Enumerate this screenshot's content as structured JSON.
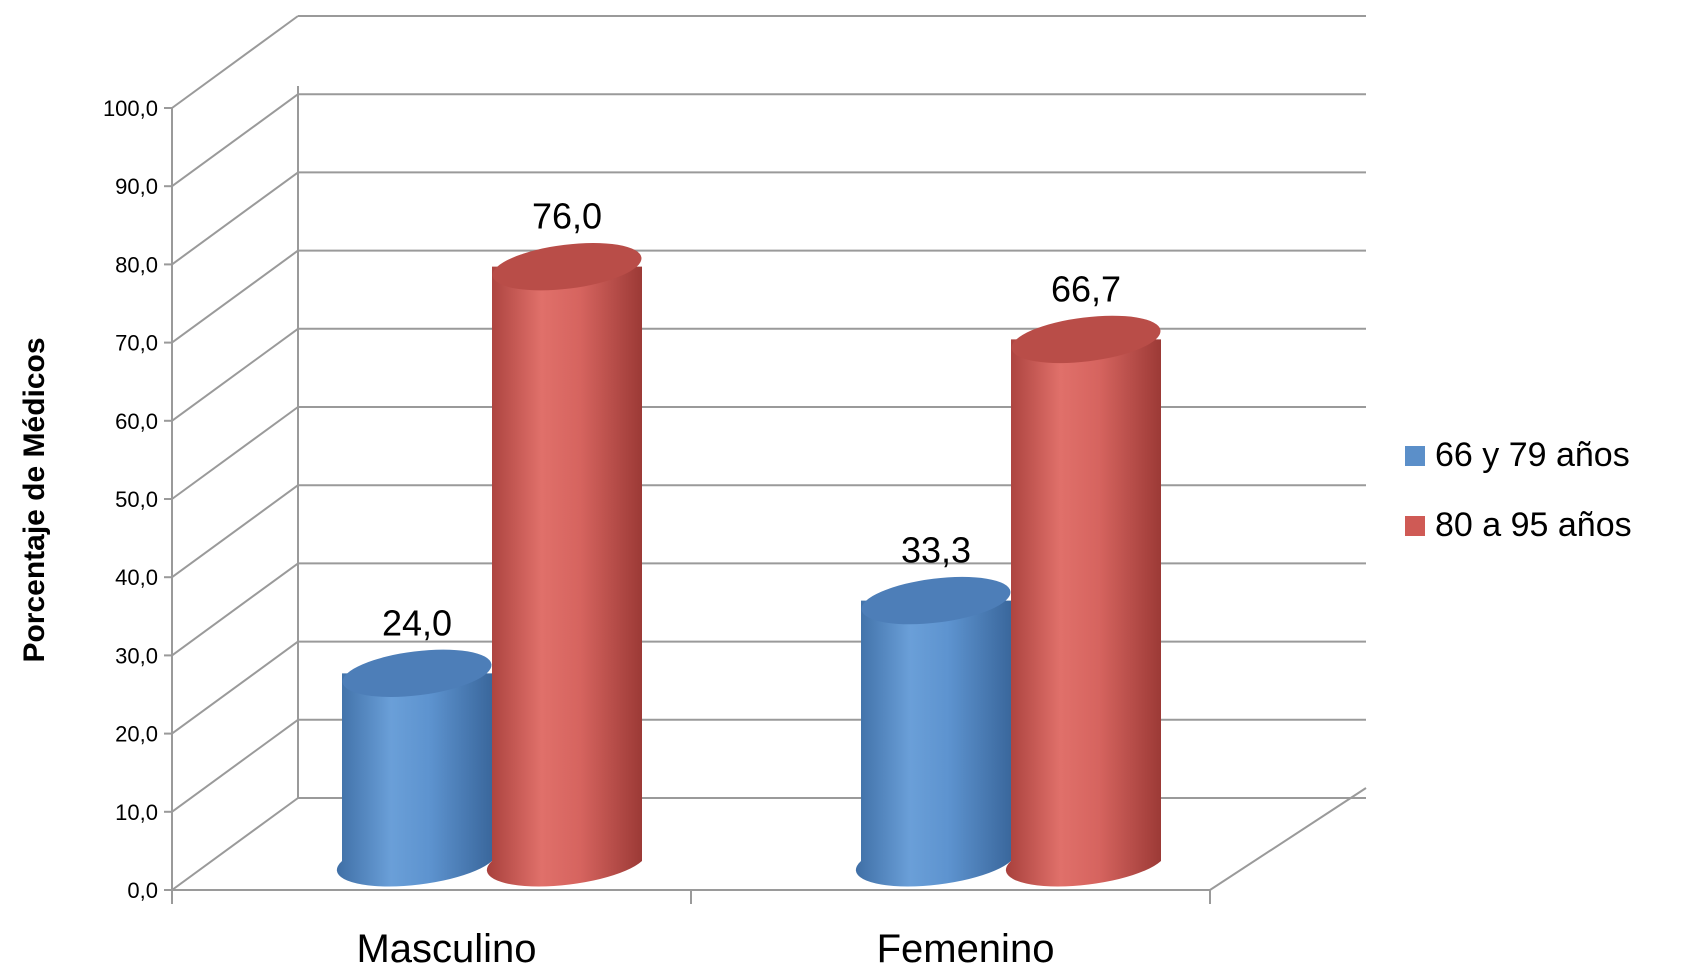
{
  "chart_data": {
    "type": "bar",
    "style": "3d-cylinder",
    "title": "",
    "xlabel": "",
    "ylabel": "Porcentaje de Médicos",
    "ylim": [
      0,
      100
    ],
    "ytick_labels": [
      "0,0",
      "10,0",
      "20,0",
      "30,0",
      "40,0",
      "50,0",
      "60,0",
      "70,0",
      "80,0",
      "90,0",
      "100,0"
    ],
    "categories": [
      "Masculino",
      "Femenino"
    ],
    "series": [
      {
        "name": "66 y 79 años",
        "color": "#5b8fc9",
        "values": [
          24.0,
          33.3
        ],
        "labels": [
          "24,0",
          "33,3"
        ]
      },
      {
        "name": "80 a 95 años",
        "color": "#cf5a55",
        "values": [
          76.0,
          66.7
        ],
        "labels": [
          "76,0",
          "66,7"
        ]
      }
    ],
    "grid": true,
    "legend": "right"
  }
}
